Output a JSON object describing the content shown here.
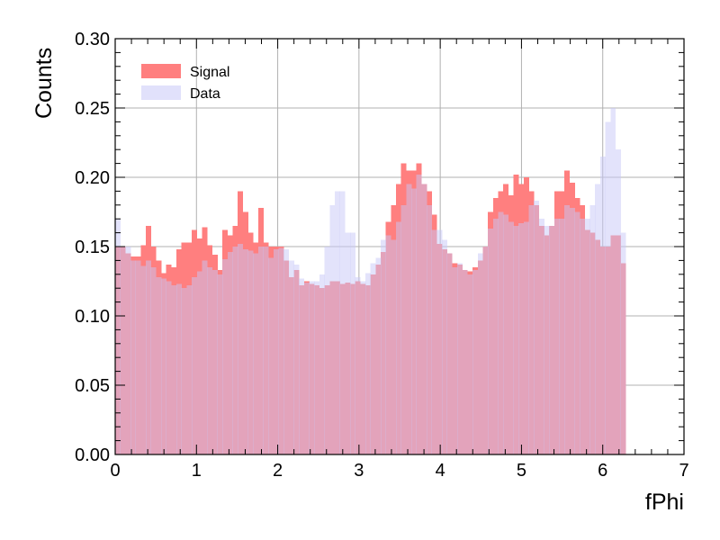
{
  "chart_data": {
    "type": "bar",
    "subtype": "overlaid-step-histogram",
    "xlabel": "fPhi",
    "ylabel": "Counts",
    "xlim": [
      0,
      7
    ],
    "ylim": [
      0,
      0.3
    ],
    "grid": true,
    "legend_position": "top-left",
    "bin_range": [
      0,
      6.2832
    ],
    "bins": 100,
    "x_ticks": [
      "0",
      "1",
      "2",
      "3",
      "4",
      "5",
      "6",
      "7"
    ],
    "y_ticks": [
      "0.00",
      "0.05",
      "0.10",
      "0.15",
      "0.20",
      "0.25",
      "0.30"
    ],
    "series": [
      {
        "name": "Signal",
        "color": "#ff7f7f",
        "opacity": 1.0,
        "values": [
          0.15,
          0.15,
          0.145,
          0.143,
          0.143,
          0.151,
          0.165,
          0.15,
          0.14,
          0.131,
          0.137,
          0.135,
          0.148,
          0.153,
          0.153,
          0.162,
          0.156,
          0.164,
          0.151,
          0.144,
          0.133,
          0.162,
          0.158,
          0.165,
          0.19,
          0.175,
          0.16,
          0.153,
          0.178,
          0.153,
          0.15,
          0.15,
          0.15,
          0.14,
          0.128,
          0.133,
          0.122,
          0.125,
          0.123,
          0.122,
          0.12,
          0.122,
          0.125,
          0.125,
          0.123,
          0.124,
          0.123,
          0.125,
          0.123,
          0.122,
          0.13,
          0.137,
          0.146,
          0.168,
          0.18,
          0.195,
          0.21,
          0.205,
          0.205,
          0.21,
          0.195,
          0.19,
          0.173,
          0.152,
          0.148,
          0.145,
          0.138,
          0.137,
          0.133,
          0.132,
          0.135,
          0.14,
          0.15,
          0.175,
          0.185,
          0.19,
          0.195,
          0.187,
          0.202,
          0.195,
          0.2,
          0.19,
          0.18,
          0.165,
          0.158,
          0.165,
          0.19,
          0.19,
          0.205,
          0.196,
          0.185,
          0.18,
          0.162,
          0.16,
          0.155,
          0.15,
          0.15,
          0.158,
          0.158,
          0.138
        ]
      },
      {
        "name": "Data",
        "color": "#c8c8f8",
        "opacity": 0.5,
        "values": [
          0.17,
          0.15,
          0.15,
          0.14,
          0.14,
          0.136,
          0.14,
          0.135,
          0.128,
          0.127,
          0.125,
          0.122,
          0.123,
          0.12,
          0.122,
          0.128,
          0.132,
          0.14,
          0.135,
          0.133,
          0.13,
          0.141,
          0.146,
          0.15,
          0.152,
          0.148,
          0.147,
          0.145,
          0.15,
          0.15,
          0.142,
          0.148,
          0.149,
          0.148,
          0.14,
          0.137,
          0.127,
          0.124,
          0.125,
          0.125,
          0.13,
          0.15,
          0.18,
          0.19,
          0.19,
          0.16,
          0.16,
          0.128,
          0.125,
          0.131,
          0.138,
          0.142,
          0.155,
          0.158,
          0.155,
          0.168,
          0.18,
          0.195,
          0.192,
          0.202,
          0.195,
          0.18,
          0.162,
          0.162,
          0.155,
          0.145,
          0.135,
          0.138,
          0.133,
          0.13,
          0.133,
          0.145,
          0.15,
          0.163,
          0.17,
          0.175,
          0.173,
          0.168,
          0.165,
          0.167,
          0.168,
          0.18,
          0.183,
          0.17,
          0.165,
          0.165,
          0.17,
          0.17,
          0.18,
          0.178,
          0.175,
          0.17,
          0.17,
          0.18,
          0.195,
          0.215,
          0.24,
          0.25,
          0.22,
          0.16
        ]
      }
    ]
  }
}
